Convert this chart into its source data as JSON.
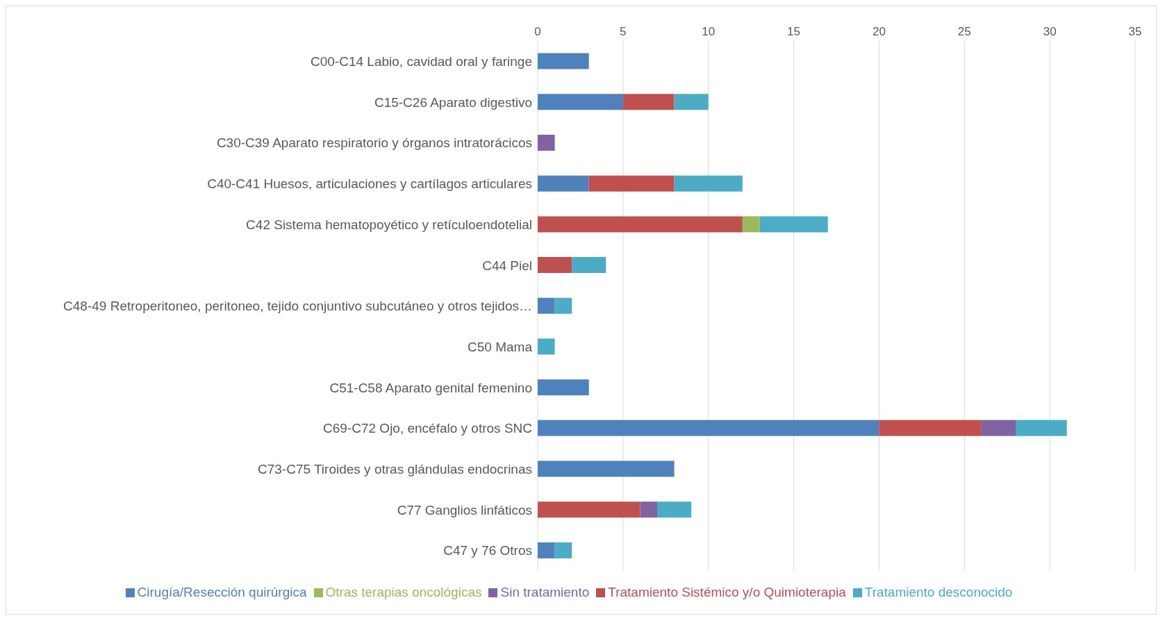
{
  "chart_data": {
    "type": "bar",
    "orientation": "horizontal",
    "stacked": true,
    "categories": [
      "C00-C14 Labio, cavidad oral y faringe",
      "C15-C26 Aparato digestivo",
      "C30-C39 Aparato respiratorio y órganos intratorácicos",
      "C40-C41 Huesos, articulaciones y cartílagos articulares",
      "C42 Sistema hematopoyético y retículoendotelial",
      "C44 Piel",
      "C48-49 Retroperitoneo, peritoneo, tejido conjuntivo subcutáneo y otros tejidos…",
      "C50 Mama",
      "C51-C58 Aparato genital femenino",
      "C69-C72 Ojo, encéfalo y otros SNC",
      "C73-C75 Tiroides y otras glándulas endocrinas",
      "C77 Ganglios linfáticos",
      "C47 y 76 Otros"
    ],
    "series": [
      {
        "name": "Cirugía/Resección quirúrgica",
        "color": "#4f81bd",
        "values": [
          3,
          5,
          0,
          3,
          0,
          0,
          1,
          0,
          3,
          20,
          8,
          0,
          1
        ]
      },
      {
        "name": "Tratamiento Sistémico y/o Quimioterapia",
        "color": "#c0504d",
        "values": [
          0,
          3,
          0,
          5,
          12,
          2,
          0,
          0,
          0,
          6,
          0,
          6,
          0
        ]
      },
      {
        "name": "Otras terapias oncológicas",
        "color": "#9bbb59",
        "values": [
          0,
          0,
          0,
          0,
          1,
          0,
          0,
          0,
          0,
          0,
          0,
          0,
          0
        ]
      },
      {
        "name": "Sin tratamiento",
        "color": "#8064a2",
        "values": [
          0,
          0,
          1,
          0,
          0,
          0,
          0,
          0,
          0,
          2,
          0,
          1,
          0
        ]
      },
      {
        "name": "Tratamiento desconocido",
        "color": "#4bacc6",
        "values": [
          0,
          2,
          0,
          4,
          4,
          2,
          1,
          1,
          0,
          3,
          0,
          2,
          1
        ]
      }
    ],
    "xlim": [
      0,
      35
    ],
    "xticks": [
      0,
      5,
      10,
      15,
      20,
      25,
      30,
      35
    ],
    "grid": "x",
    "legend": "bottom"
  }
}
